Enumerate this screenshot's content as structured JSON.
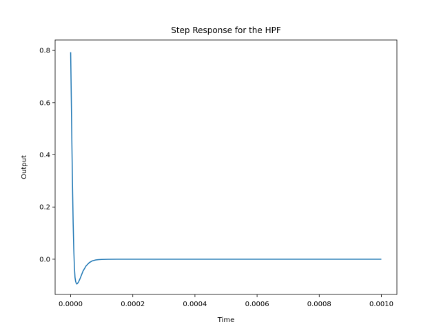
{
  "chart_data": {
    "type": "line",
    "title": "Step Response for the HPF",
    "xlabel": "Time",
    "ylabel": "Output",
    "xlim": [
      -5e-05,
      0.00105
    ],
    "ylim": [
      -0.135,
      0.84
    ],
    "x_ticks": [
      0.0,
      0.0002,
      0.0004,
      0.0006,
      0.0008,
      0.001
    ],
    "x_tick_labels": [
      "0.0000",
      "0.0002",
      "0.0004",
      "0.0006",
      "0.0008",
      "0.0010"
    ],
    "y_ticks": [
      0.0,
      0.2,
      0.4,
      0.6,
      0.8
    ],
    "y_tick_labels": [
      "0.0",
      "0.2",
      "0.4",
      "0.6",
      "0.8"
    ],
    "grid": false,
    "legend": "none",
    "series": [
      {
        "color": "#1f77b4",
        "points": [
          [
            0.0,
            0.793
          ],
          [
            2e-06,
            0.62
          ],
          [
            4e-06,
            0.44
          ],
          [
            6e-06,
            0.28
          ],
          [
            8e-06,
            0.14
          ],
          [
            1e-05,
            0.04
          ],
          [
            1.2e-05,
            -0.03
          ],
          [
            1.4e-05,
            -0.07
          ],
          [
            1.6e-05,
            -0.085
          ],
          [
            1.8e-05,
            -0.092
          ],
          [
            2e-05,
            -0.095
          ],
          [
            2.5e-05,
            -0.088
          ],
          [
            3e-05,
            -0.075
          ],
          [
            3.5e-05,
            -0.06
          ],
          [
            4e-05,
            -0.045
          ],
          [
            5e-05,
            -0.025
          ],
          [
            6e-05,
            -0.013
          ],
          [
            7e-05,
            -0.006
          ],
          [
            8e-05,
            -0.003
          ],
          [
            9e-05,
            -0.0015
          ],
          [
            0.0001,
            -0.0008
          ],
          [
            0.00012,
            -0.0002
          ],
          [
            0.00015,
            0.0
          ],
          [
            0.0002,
            0.0
          ],
          [
            0.0003,
            0.0
          ],
          [
            0.0004,
            0.0
          ],
          [
            0.0005,
            0.0
          ],
          [
            0.0006,
            0.0
          ],
          [
            0.0007,
            0.0
          ],
          [
            0.0008,
            0.0
          ],
          [
            0.0009,
            0.0
          ],
          [
            0.001,
            0.0
          ]
        ]
      }
    ]
  }
}
